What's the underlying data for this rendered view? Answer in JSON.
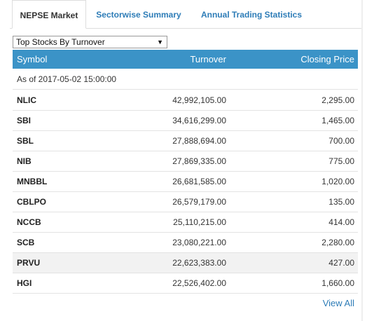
{
  "tabs": [
    {
      "label": "NEPSE Market",
      "active": true
    },
    {
      "label": "Sectorwise Summary",
      "active": false
    },
    {
      "label": "Annual Trading Statistics",
      "active": false
    }
  ],
  "select": {
    "value": "Top Stocks By Turnover"
  },
  "table": {
    "headers": {
      "symbol": "Symbol",
      "turnover": "Turnover",
      "closing_price": "Closing Price"
    },
    "as_of": "As of 2017-05-02 15:00:00",
    "rows": [
      {
        "symbol": "NLIC",
        "turnover": "42,992,105.00",
        "closing_price": "2,295.00"
      },
      {
        "symbol": "SBI",
        "turnover": "34,616,299.00",
        "closing_price": "1,465.00"
      },
      {
        "symbol": "SBL",
        "turnover": "27,888,694.00",
        "closing_price": "700.00"
      },
      {
        "symbol": "NIB",
        "turnover": "27,869,335.00",
        "closing_price": "775.00"
      },
      {
        "symbol": "MNBBL",
        "turnover": "26,681,585.00",
        "closing_price": "1,020.00"
      },
      {
        "symbol": "CBLPO",
        "turnover": "26,579,179.00",
        "closing_price": "135.00"
      },
      {
        "symbol": "NCCB",
        "turnover": "25,110,215.00",
        "closing_price": "414.00"
      },
      {
        "symbol": "SCB",
        "turnover": "23,080,221.00",
        "closing_price": "2,280.00"
      },
      {
        "symbol": "PRVU",
        "turnover": "22,623,383.00",
        "closing_price": "427.00"
      },
      {
        "symbol": "HGI",
        "turnover": "22,526,402.00",
        "closing_price": "1,660.00"
      }
    ]
  },
  "view_all": "View All",
  "colors": {
    "header_bg": "#3b93c7",
    "link": "#2d7cb7"
  },
  "icons": {
    "select_arrow": "triangle-down-icon"
  }
}
